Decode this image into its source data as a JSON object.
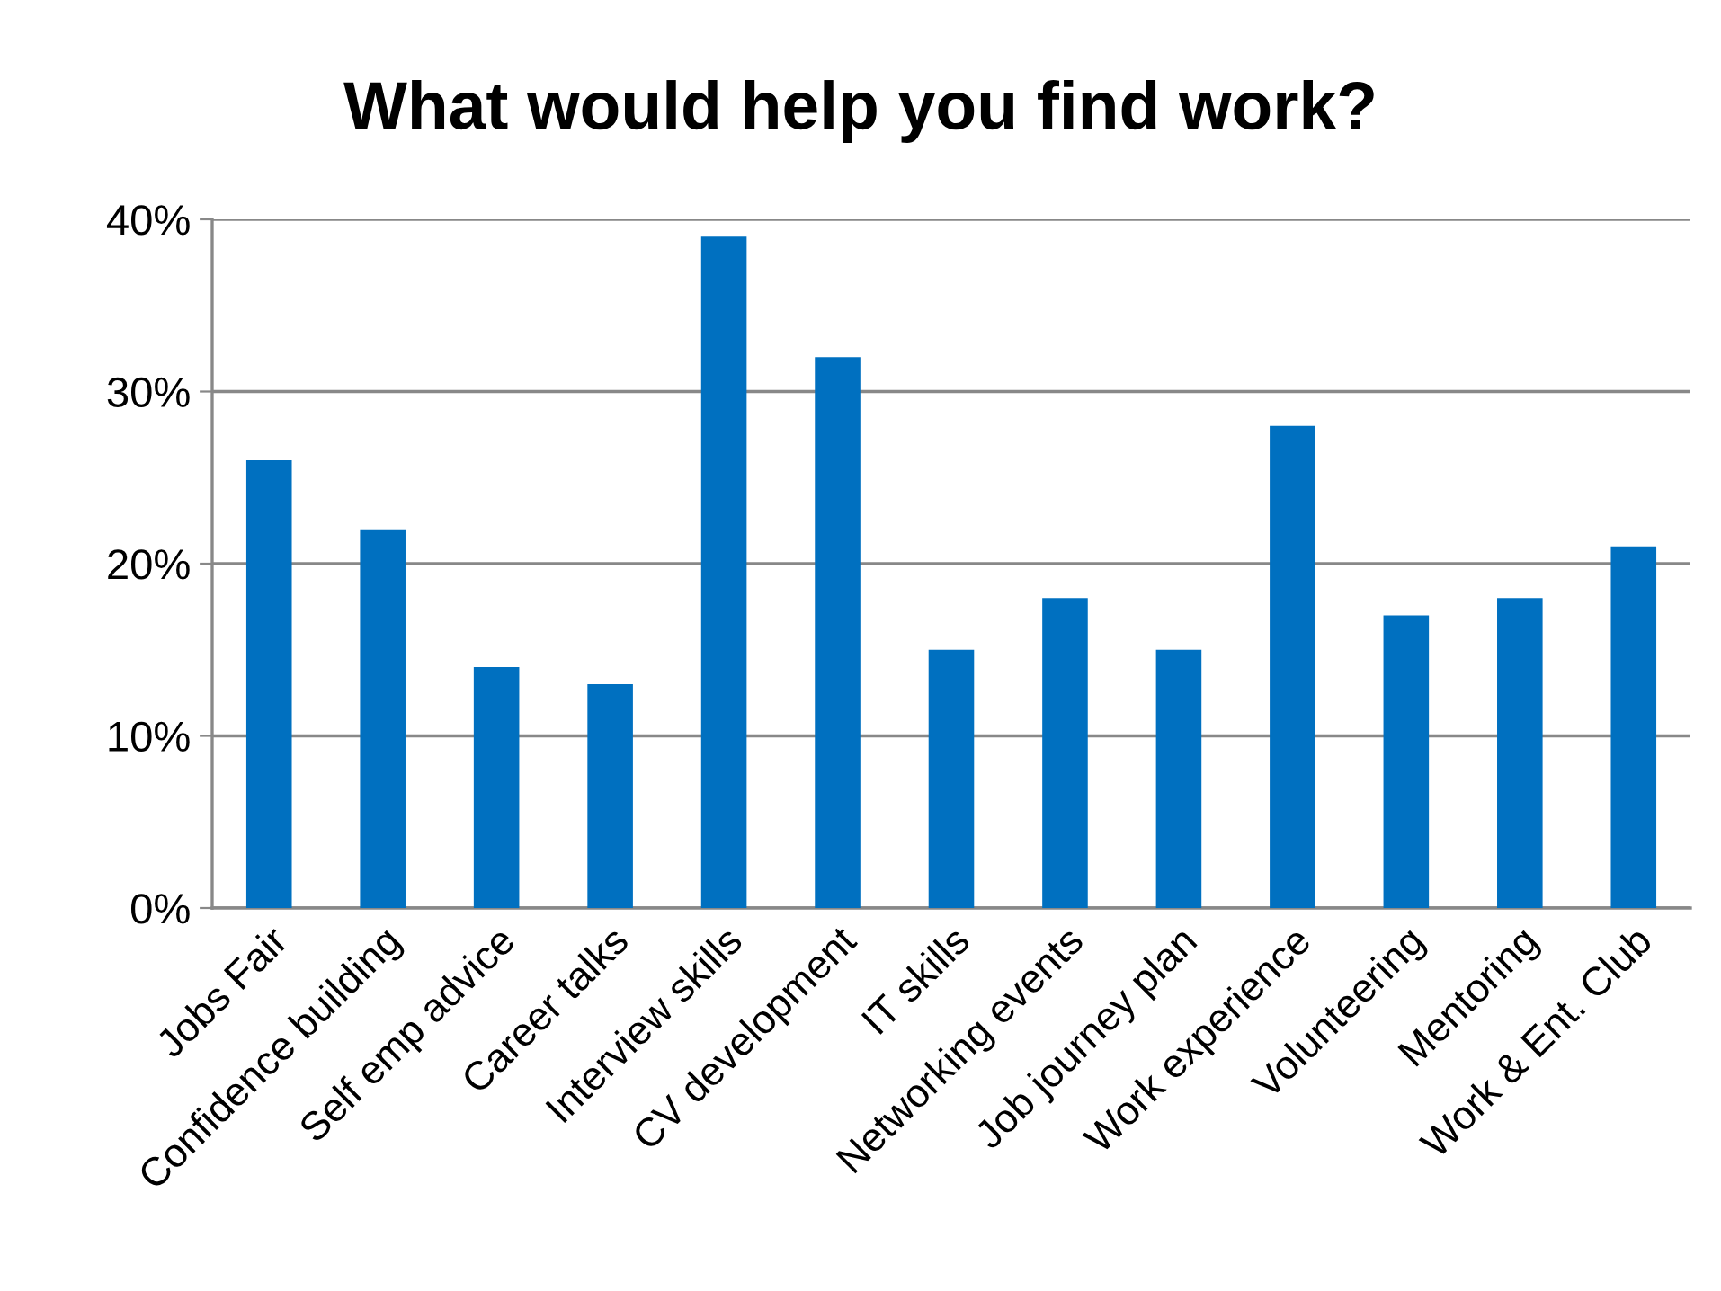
{
  "chart_data": {
    "type": "bar",
    "title": "What would help you find work?",
    "categories": [
      "Jobs Fair",
      "Confidence building",
      "Self emp advice",
      "Career talks",
      "Interview skills",
      "CV development",
      "IT skills",
      "Networking events",
      "Job journey plan",
      "Work experience",
      "Volunteering",
      "Mentoring",
      "Work & Ent. Club"
    ],
    "values": [
      26,
      22,
      14,
      13,
      39,
      32,
      15,
      18,
      15,
      28,
      17,
      18,
      21
    ],
    "color": "#0070c0",
    "ylim": [
      0,
      40
    ],
    "yticks": [
      {
        "value": 0,
        "label": "0%"
      },
      {
        "value": 10,
        "label": "10%"
      },
      {
        "value": 20,
        "label": "20%"
      },
      {
        "value": 30,
        "label": "30%"
      },
      {
        "value": 40,
        "label": "40%"
      }
    ],
    "grid": "y",
    "legend": false
  }
}
